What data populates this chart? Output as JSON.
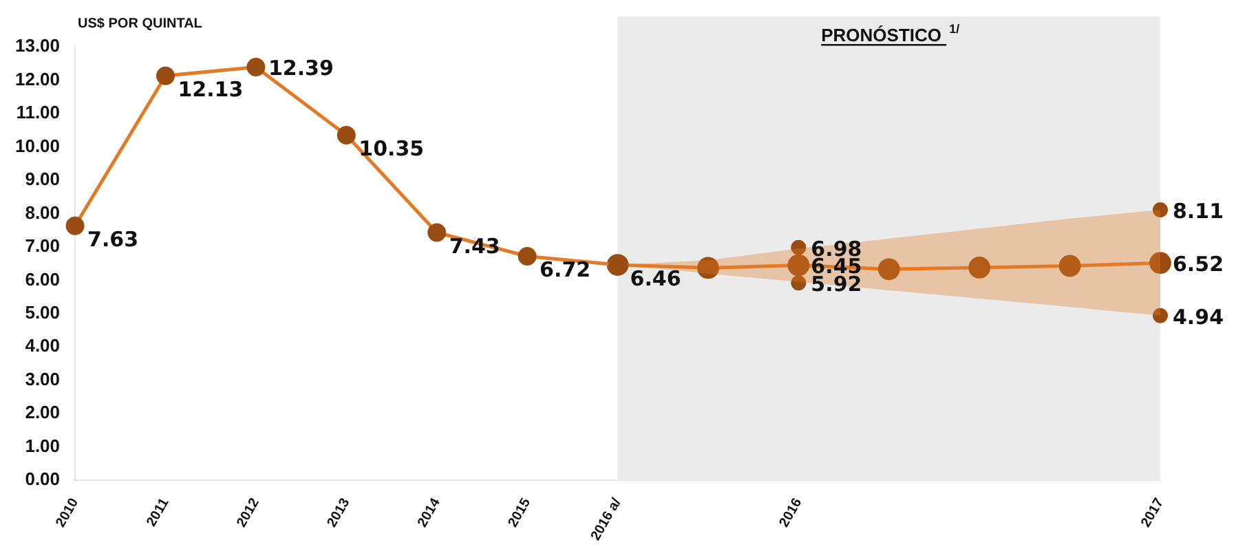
{
  "chart_data": {
    "type": "line",
    "ylabel": "US$ POR QUINTAL",
    "categories": [
      "2010",
      "2011",
      "2012",
      "2013",
      "2014",
      "2015",
      "2016 a/",
      null,
      "2016",
      null,
      null,
      null,
      "2017"
    ],
    "series": [
      {
        "color": "#e37a26",
        "values": [
          7.63,
          12.13,
          12.39,
          10.35,
          7.43,
          6.72,
          6.46,
          null,
          null,
          null,
          null,
          null,
          null
        ],
        "value_labels": [
          "7.63",
          "12.13",
          "12.39",
          "10.35",
          "7.43",
          "6.72",
          "6.46",
          null,
          null,
          null,
          null,
          null,
          null
        ]
      },
      {
        "color": "#e37a26",
        "values": [
          null,
          null,
          null,
          null,
          null,
          null,
          6.46,
          6.37,
          6.45,
          6.33,
          6.38,
          6.43,
          6.52
        ],
        "lower": [
          null,
          null,
          null,
          null,
          null,
          null,
          6.46,
          6.2,
          5.95,
          5.7,
          5.45,
          5.2,
          4.94
        ],
        "upper": [
          null,
          null,
          null,
          null,
          null,
          null,
          6.46,
          6.6,
          6.95,
          7.25,
          7.55,
          7.85,
          8.11
        ],
        "value_labels": [
          null,
          null,
          null,
          null,
          null,
          null,
          null,
          null,
          "6.45",
          null,
          null,
          null,
          "6.52"
        ]
      },
      {
        "type": "scatter",
        "color": "#9a4d12",
        "values": [
          null,
          null,
          null,
          null,
          null,
          null,
          null,
          null,
          6.98,
          null,
          null,
          null,
          8.11
        ],
        "value_labels": [
          null,
          null,
          null,
          null,
          null,
          null,
          null,
          null,
          "6.98",
          null,
          null,
          null,
          "8.11"
        ]
      },
      {
        "type": "scatter",
        "color": "#9a4d12",
        "values": [
          null,
          null,
          null,
          null,
          null,
          null,
          null,
          null,
          5.92,
          null,
          null,
          null,
          4.94
        ],
        "value_labels": [
          null,
          null,
          null,
          null,
          null,
          null,
          null,
          null,
          "5.92",
          null,
          null,
          null,
          "4.94"
        ]
      }
    ],
    "ylim": [
      0,
      13
    ],
    "yticks": [
      {
        "value": 0,
        "label": "0.00"
      },
      {
        "value": 1,
        "label": "1.00"
      },
      {
        "value": 2,
        "label": "2.00"
      },
      {
        "value": 3,
        "label": "3.00"
      },
      {
        "value": 4,
        "label": "4.00"
      },
      {
        "value": 5,
        "label": "5.00"
      },
      {
        "value": 6,
        "label": "6.00"
      },
      {
        "value": 7,
        "label": "7.00"
      },
      {
        "value": 8,
        "label": "8.00"
      },
      {
        "value": 9,
        "label": "9.00"
      },
      {
        "value": 10,
        "label": "10.00"
      },
      {
        "value": 11,
        "label": "11.00"
      },
      {
        "value": 12,
        "label": "12.00"
      },
      {
        "value": 13,
        "label": "13.00"
      }
    ],
    "bands": [
      {
        "axis": "x",
        "from": "2016 a/",
        "to": "2017",
        "label": "PRONÓSTICO $^{1/}$",
        "color": "#ebebeb"
      }
    ],
    "grid": false,
    "legend": false,
    "marker": "circle",
    "line_style": "solid"
  }
}
